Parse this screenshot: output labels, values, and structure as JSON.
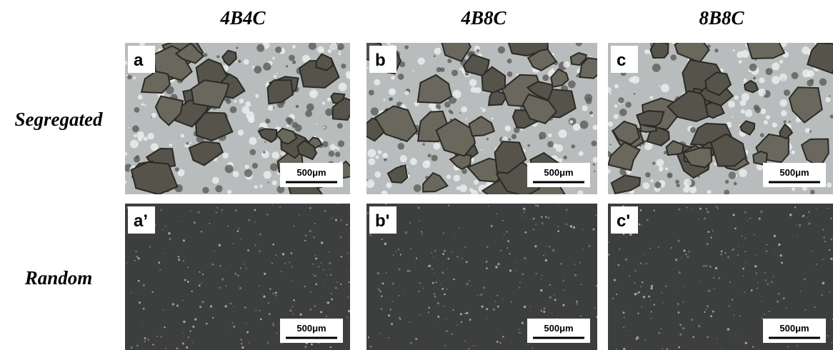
{
  "column_headers": [
    "4B4C",
    "4B8C",
    "8B8C"
  ],
  "row_headers": [
    "Segregated",
    "Random"
  ],
  "panels": [
    {
      "label": "a",
      "scale_bar": "500μm"
    },
    {
      "label": "b",
      "scale_bar": "500μm"
    },
    {
      "label": "c",
      "scale_bar": "500μm"
    },
    {
      "label": "a’",
      "scale_bar": "500μm"
    },
    {
      "label": "b'",
      "scale_bar": "500μm"
    },
    {
      "label": "c'",
      "scale_bar": "500μm"
    }
  ]
}
